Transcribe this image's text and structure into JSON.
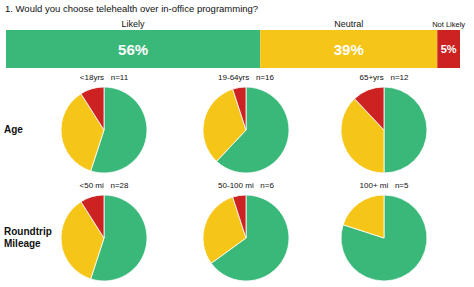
{
  "chart_data": [
    {
      "type": "bar",
      "title": "1. Would you choose telehealth over in-office programming?",
      "orientation": "horizontal",
      "stacked": true,
      "categories": [
        null
      ],
      "series": [
        {
          "name": "Likely",
          "color": "#3ab87a",
          "values": [
            56
          ],
          "value_labels": [
            "56%"
          ]
        },
        {
          "name": "Neutral",
          "color": "#f5c518",
          "values": [
            39
          ],
          "value_labels": [
            "39%"
          ]
        },
        {
          "name": "Not Likely",
          "color": "#cc2222",
          "values": [
            5
          ],
          "value_labels": [
            "5%"
          ]
        }
      ],
      "xlim": [
        0,
        100
      ],
      "data_labels": true,
      "tick_labels": false
    },
    {
      "type": "pie",
      "title": "<18yrs   n=11",
      "annotations": [
        "Age"
      ],
      "values": [
        55,
        36,
        9
      ],
      "colors": [
        "#3ab87a",
        "#f5c518",
        "#cc2222"
      ]
    },
    {
      "type": "pie",
      "title": "19-64yrs   n=16",
      "values": [
        62,
        33,
        5
      ],
      "colors": [
        "#3ab87a",
        "#f5c518",
        "#cc2222"
      ]
    },
    {
      "type": "pie",
      "title": "65+yrs   n=12",
      "values": [
        50,
        38,
        12
      ],
      "colors": [
        "#3ab87a",
        "#f5c518",
        "#cc2222"
      ]
    },
    {
      "type": "pie",
      "title": "<50 mi   n=28",
      "annotations": [
        "Roundtrip\nMileage"
      ],
      "values": [
        55,
        36,
        9
      ],
      "colors": [
        "#3ab87a",
        "#f5c518",
        "#cc2222"
      ]
    },
    {
      "type": "pie",
      "title": "50-100 mi   n=6",
      "values": [
        65,
        30,
        5
      ],
      "colors": [
        "#3ab87a",
        "#f5c518",
        "#cc2222"
      ]
    },
    {
      "type": "pie",
      "title": "100+ mi   n=5",
      "values": [
        80,
        20
      ],
      "colors": [
        "#3ab87a",
        "#f5c518"
      ]
    }
  ]
}
